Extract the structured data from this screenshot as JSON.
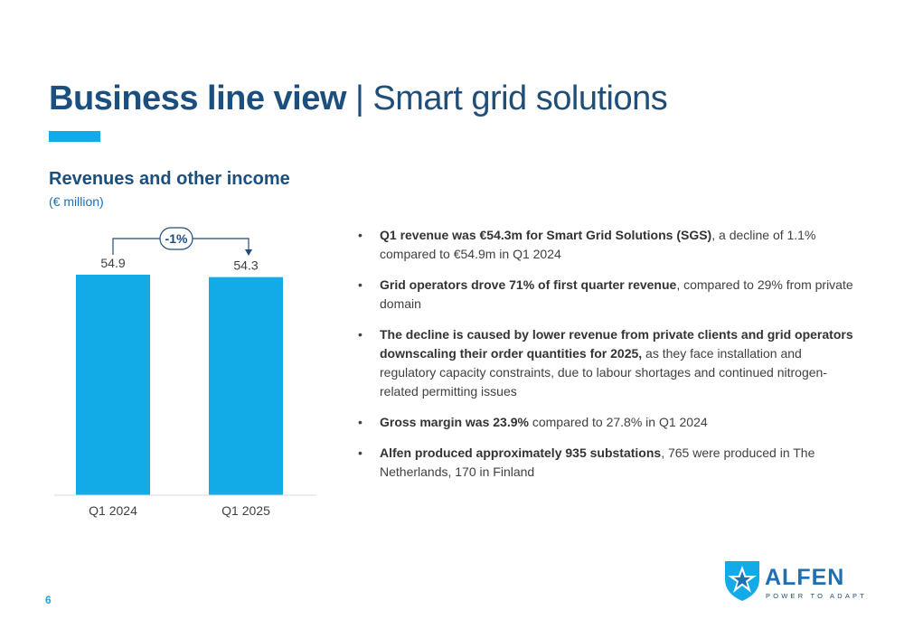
{
  "page": {
    "title_bold": "Business line view",
    "title_separator": "|",
    "title_rest": "Smart grid solutions",
    "page_number": "6"
  },
  "colors": {
    "accent": "#12abe7",
    "title": "#1b4f7f",
    "body_text": "#404040"
  },
  "chart_data": {
    "type": "bar",
    "title": "Revenues and other income",
    "unit": "(€ million)",
    "categories": [
      "Q1 2024",
      "Q1 2025"
    ],
    "values": [
      54.9,
      54.3
    ],
    "value_labels": [
      "54.9",
      "54.3"
    ],
    "annotation": "-1%",
    "ylim": [
      0,
      54.9
    ],
    "grid": false
  },
  "bullets": [
    {
      "bold": "Q1 revenue was €54.3m for Smart Grid Solutions (SGS)",
      "text": ", a decline of 1.1% compared to €54.9m in Q1 2024"
    },
    {
      "bold": "Grid operators drove 71% of first quarter revenue",
      "text": ", compared to 29% from private domain"
    },
    {
      "bold": "The decline is caused by lower revenue from private clients and grid operators downscaling their order quantities for 2025,",
      "text": " as they face installation and regulatory capacity constraints, due to labour shortages and continued nitrogen-related permitting issues"
    },
    {
      "bold": "Gross margin was 23.9%",
      "text": " compared to 27.8% in Q1 2024"
    },
    {
      "bold": "Alfen produced approximately 935 substations",
      "text": ", 765 were produced in The Netherlands, 170 in Finland"
    }
  ],
  "logo": {
    "name": "ALFEN",
    "tagline": "POWER TO ADAPT",
    "icon": "alfen-shield-star-icon"
  }
}
